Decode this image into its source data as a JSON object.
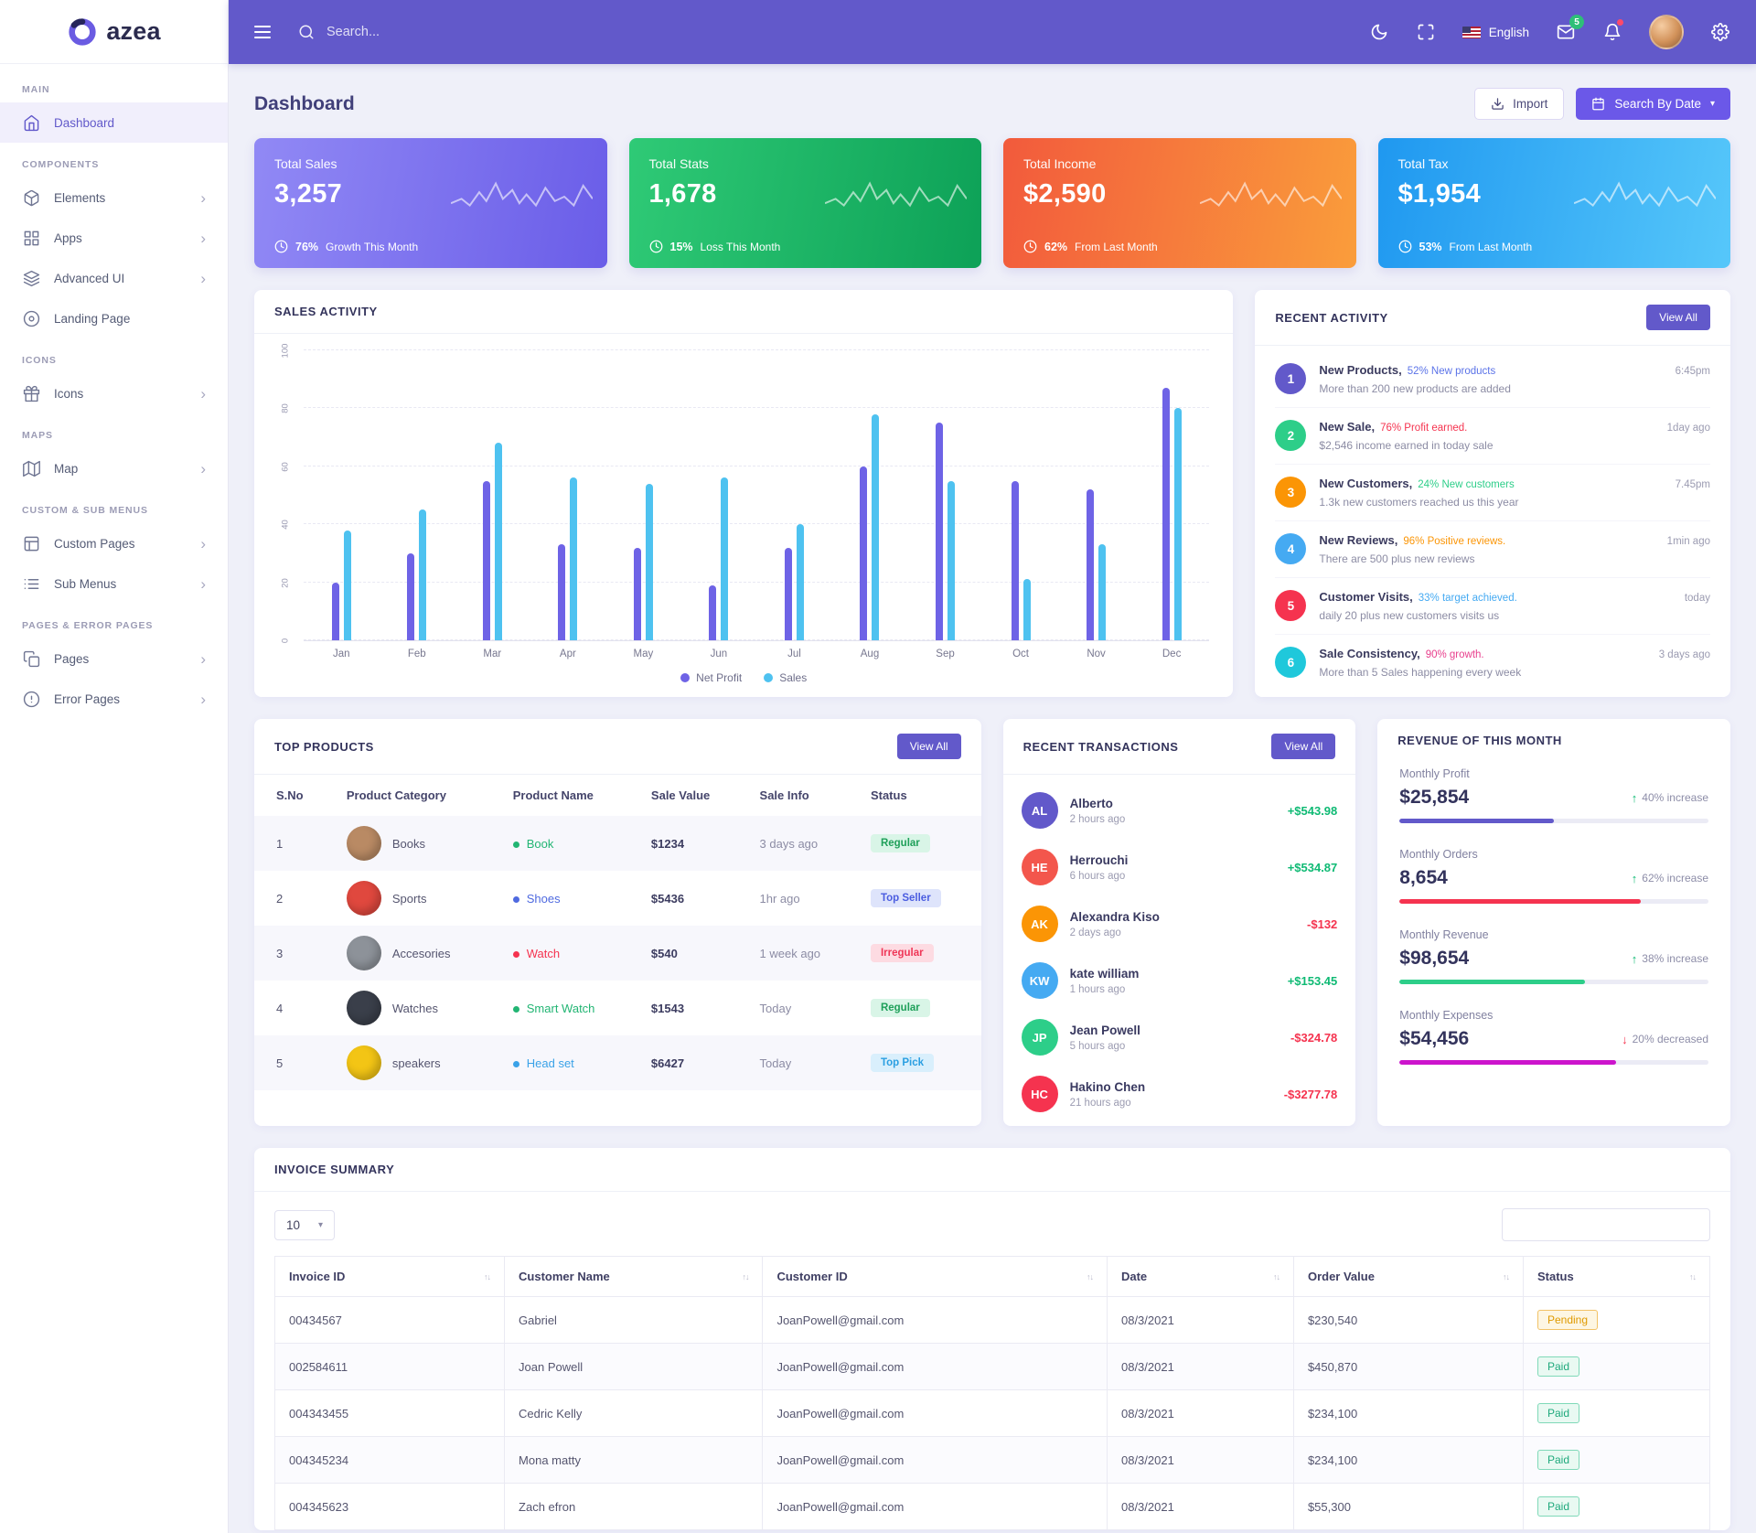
{
  "brand": {
    "name": "azea"
  },
  "topbar": {
    "search_placeholder": "Search...",
    "language": "English",
    "mail_badge": "5"
  },
  "sidebar": {
    "sections": [
      {
        "label": "MAIN",
        "items": [
          {
            "label": "Dashboard",
            "icon": "home",
            "active": true,
            "chevron": false
          }
        ]
      },
      {
        "label": "COMPONENTS",
        "items": [
          {
            "label": "Elements",
            "icon": "elements",
            "active": false,
            "chevron": true
          },
          {
            "label": "Apps",
            "icon": "apps",
            "active": false,
            "chevron": true
          },
          {
            "label": "Advanced UI",
            "icon": "advanced-ui",
            "active": false,
            "chevron": true
          },
          {
            "label": "Landing Page",
            "icon": "landing-page",
            "active": false,
            "chevron": false
          }
        ]
      },
      {
        "label": "ICONS",
        "items": [
          {
            "label": "Icons",
            "icon": "icons",
            "active": false,
            "chevron": true
          }
        ]
      },
      {
        "label": "MAPS",
        "items": [
          {
            "label": "Map",
            "icon": "map",
            "active": false,
            "chevron": true
          }
        ]
      },
      {
        "label": "CUSTOM & SUB MENUS",
        "items": [
          {
            "label": "Custom Pages",
            "icon": "custom-pages",
            "active": false,
            "chevron": true
          },
          {
            "label": "Sub Menus",
            "icon": "sub-menus",
            "active": false,
            "chevron": true
          }
        ]
      },
      {
        "label": "PAGES & ERROR PAGES",
        "items": [
          {
            "label": "Pages",
            "icon": "pages",
            "active": false,
            "chevron": true
          },
          {
            "label": "Error Pages",
            "icon": "error-pages",
            "active": false,
            "chevron": true
          }
        ]
      }
    ]
  },
  "page": {
    "title": "Dashboard",
    "import_label": "Import",
    "search_by_date_label": "Search By Date"
  },
  "stat_cards": [
    {
      "title": "Total Sales",
      "value": "3,257",
      "pct": "76%",
      "note": "Growth This Month",
      "gradient_from": "#9189f5",
      "gradient_to": "#6a5de8"
    },
    {
      "title": "Total Stats",
      "value": "1,678",
      "pct": "15%",
      "note": "Loss This Month",
      "gradient_from": "#2fca76",
      "gradient_to": "#0da157"
    },
    {
      "title": "Total Income",
      "value": "$2,590",
      "pct": "62%",
      "note": "From Last Month",
      "gradient_from": "#f25a3c",
      "gradient_to": "#fa9d3b"
    },
    {
      "title": "Total Tax",
      "value": "$1,954",
      "pct": "53%",
      "note": "From Last Month",
      "gradient_from": "#1f98f0",
      "gradient_to": "#56c7fa"
    }
  ],
  "chart_data": {
    "type": "bar",
    "title": "SALES ACTIVITY",
    "categories": [
      "Jan",
      "Feb",
      "Mar",
      "Apr",
      "May",
      "Jun",
      "Jul",
      "Aug",
      "Sep",
      "Oct",
      "Nov",
      "Dec"
    ],
    "series": [
      {
        "name": "Net Profit",
        "color": "#6e63e6",
        "values": [
          20,
          30,
          55,
          33,
          32,
          19,
          32,
          60,
          75,
          55,
          52,
          87
        ]
      },
      {
        "name": "Sales",
        "color": "#4ec2f0",
        "values": [
          38,
          45,
          68,
          56,
          54,
          56,
          40,
          78,
          55,
          21,
          33,
          80
        ]
      }
    ],
    "ylim": [
      0,
      100
    ],
    "yticks": [
      0,
      20,
      40,
      60,
      80,
      100
    ],
    "grid": true,
    "legend_position": "bottom"
  },
  "recent_activity": {
    "title": "RECENT ACTIVITY",
    "view_all": "View All",
    "items": [
      {
        "num": "1",
        "color": "#6259ca",
        "title": "New Products,",
        "highlight": "52% New products",
        "highlight_color": "#5b73e8",
        "desc": "More than 200 new products are added",
        "time": "6:45pm"
      },
      {
        "num": "2",
        "color": "#2dce89",
        "title": "New Sale,",
        "highlight": "76% Profit earned.",
        "highlight_color": "#f5334f",
        "desc": "$2,546 income earned in today sale",
        "time": "1day ago"
      },
      {
        "num": "3",
        "color": "#fb9505",
        "title": "New Customers,",
        "highlight": "24% New customers",
        "highlight_color": "#2dce89",
        "desc": "1.3k new customers reached us this year",
        "time": "7.45pm"
      },
      {
        "num": "4",
        "color": "#45aaf2",
        "title": "New Reviews,",
        "highlight": "96% Positive reviews.",
        "highlight_color": "#fb9505",
        "desc": "There are 500 plus new reviews",
        "time": "1min ago"
      },
      {
        "num": "5",
        "color": "#f5334f",
        "title": "Customer Visits,",
        "highlight": "33% target achieved.",
        "highlight_color": "#45aaf2",
        "desc": "daily 20 plus new customers visits us",
        "time": "today"
      },
      {
        "num": "6",
        "color": "#1fc8db",
        "title": "Sale Consistency,",
        "highlight": "90% growth.",
        "highlight_color": "#e83e8c",
        "desc": "More than 5 Sales happening every week",
        "time": "3 days ago"
      }
    ]
  },
  "top_products": {
    "title": "TOP PRODUCTS",
    "view_all": "View All",
    "columns": [
      "S.No",
      "Product Category",
      "Product Name",
      "Sale Value",
      "Sale Info",
      "Status"
    ],
    "rows": [
      {
        "sno": "1",
        "category": "Books",
        "img_color": "#b98a64",
        "dot": "#22b573",
        "name": "Book",
        "value": "$1234",
        "info": "3 days ago",
        "status": "Regular",
        "status_bg": "#d9f5e7",
        "status_color": "#1fa05a"
      },
      {
        "sno": "2",
        "category": "Sports",
        "img_color": "#e0483e",
        "dot": "#4f6ae0",
        "name": "Shoes",
        "value": "$5436",
        "info": "1hr ago",
        "status": "Top Seller",
        "status_bg": "#dee4fb",
        "status_color": "#4b5de0"
      },
      {
        "sno": "3",
        "category": "Accesories",
        "img_color": "#8d9299",
        "dot": "#f5334f",
        "name": "Watch",
        "value": "$540",
        "info": "1 week ago",
        "status": "Irregular",
        "status_bg": "#fddbe2",
        "status_color": "#ef3657"
      },
      {
        "sno": "4",
        "category": "Watches",
        "img_color": "#3a3f4a",
        "dot": "#22b573",
        "name": "Smart Watch",
        "value": "$1543",
        "info": "Today",
        "status": "Regular",
        "status_bg": "#d9f5e7",
        "status_color": "#1fa05a"
      },
      {
        "sno": "5",
        "category": "speakers",
        "img_color": "#f3c515",
        "dot": "#3aa2e8",
        "name": "Head set",
        "value": "$6427",
        "info": "Today",
        "status": "Top Pick",
        "status_bg": "#d9effc",
        "status_color": "#2b9fe2"
      }
    ]
  },
  "transactions": {
    "title": "RECENT TRANSACTIONS",
    "view_all": "View All",
    "items": [
      {
        "initials": "AL",
        "color": "#6259ca",
        "name": "Alberto",
        "time": "2 hours ago",
        "amount": "+$543.98",
        "amount_color": "#0fba74"
      },
      {
        "initials": "HE",
        "color": "#f3564c",
        "name": "Herrouchi",
        "time": "6 hours ago",
        "amount": "+$534.87",
        "amount_color": "#0fba74"
      },
      {
        "initials": "AK",
        "color": "#fb9505",
        "name": "Alexandra Kiso",
        "time": "2 days ago",
        "amount": "-$132",
        "amount_color": "#f5334f"
      },
      {
        "initials": "KW",
        "color": "#45aaf2",
        "name": "kate william",
        "time": "1 hours ago",
        "amount": "+$153.45",
        "amount_color": "#0fba74"
      },
      {
        "initials": "JP",
        "color": "#2dce89",
        "name": "Jean Powell",
        "time": "5 hours ago",
        "amount": "-$324.78",
        "amount_color": "#f5334f"
      },
      {
        "initials": "HC",
        "color": "#f5334f",
        "name": "Hakino Chen",
        "time": "21 hours ago",
        "amount": "-$3277.78",
        "amount_color": "#f5334f"
      }
    ]
  },
  "revenue": {
    "title": "REVENUE OF THIS MONTH",
    "items": [
      {
        "label": "Monthly Profit",
        "value": "$25,854",
        "change": "40% increase",
        "dir": "up",
        "arrow_color": "#0fba74",
        "bar_color": "#6259ca",
        "pct": 50
      },
      {
        "label": "Monthly Orders",
        "value": "8,654",
        "change": "62% increase",
        "dir": "up",
        "arrow_color": "#0fba74",
        "bar_color": "#f5334f",
        "pct": 78
      },
      {
        "label": "Monthly Revenue",
        "value": "$98,654",
        "change": "38% increase",
        "dir": "up",
        "arrow_color": "#0fba74",
        "bar_color": "#2dce89",
        "pct": 60
      },
      {
        "label": "Monthly Expenses",
        "value": "$54,456",
        "change": "20% decreased",
        "dir": "down",
        "arrow_color": "#f5334f",
        "bar_color": "#cc14cc",
        "pct": 70
      }
    ]
  },
  "invoice": {
    "title": "INVOICE SUMMARY",
    "page_size": "10",
    "columns": [
      "Invoice ID",
      "Customer Name",
      "Customer ID",
      "Date",
      "Order Value",
      "Status"
    ],
    "rows": [
      {
        "id": "00434567",
        "name": "Gabriel",
        "email": "JoanPowell@gmail.com",
        "date": "08/3/2021",
        "value": "$230,540",
        "status": "Pending",
        "status_type": "pending"
      },
      {
        "id": "002584611",
        "name": "Joan Powell",
        "email": "JoanPowell@gmail.com",
        "date": "08/3/2021",
        "value": "$450,870",
        "status": "Paid",
        "status_type": "paid"
      },
      {
        "id": "004343455",
        "name": "Cedric Kelly",
        "email": "JoanPowell@gmail.com",
        "date": "08/3/2021",
        "value": "$234,100",
        "status": "Paid",
        "status_type": "paid"
      },
      {
        "id": "004345234",
        "name": "Mona matty",
        "email": "JoanPowell@gmail.com",
        "date": "08/3/2021",
        "value": "$234,100",
        "status": "Paid",
        "status_type": "paid"
      },
      {
        "id": "004345623",
        "name": "Zach efron",
        "email": "JoanPowell@gmail.com",
        "date": "08/3/2021",
        "value": "$55,300",
        "status": "Paid",
        "status_type": "paid"
      }
    ]
  }
}
